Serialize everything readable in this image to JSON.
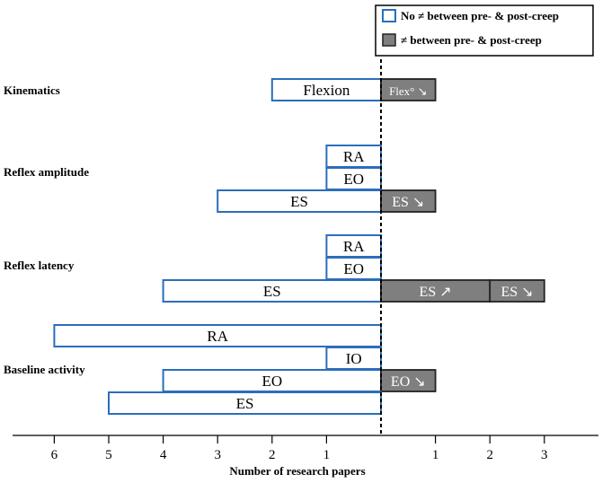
{
  "chart_data": {
    "type": "bar",
    "orientation": "horizontal-diverging",
    "xlabel": "Number of research papers",
    "left_ticks": [
      6,
      5,
      4,
      3,
      2,
      1
    ],
    "right_ticks": [
      1,
      2,
      3
    ],
    "legend": [
      {
        "label": "No ≠ between pre- & post-creep",
        "style": "outline",
        "color": "#2a6ebb"
      },
      {
        "label": "≠ between pre- & post-creep",
        "style": "filled",
        "color": "#7f7f7f"
      }
    ],
    "categories": [
      {
        "name": "Kinematics",
        "rows": [
          {
            "label": "Flexion",
            "no_diff": 2,
            "diff": [
              {
                "label": "Flex° ↘",
                "value": 1
              }
            ]
          }
        ]
      },
      {
        "name": "Reflex amplitude",
        "rows": [
          {
            "label": "RA",
            "no_diff": 1,
            "diff": []
          },
          {
            "label": "EO",
            "no_diff": 1,
            "diff": []
          },
          {
            "label": "ES",
            "no_diff": 3,
            "diff": [
              {
                "label": "ES ↘",
                "value": 1
              }
            ]
          }
        ]
      },
      {
        "name": "Reflex latency",
        "rows": [
          {
            "label": "RA",
            "no_diff": 1,
            "diff": []
          },
          {
            "label": "EO",
            "no_diff": 1,
            "diff": []
          },
          {
            "label": "ES",
            "no_diff": 4,
            "diff": [
              {
                "label": "ES ↗",
                "value": 2
              },
              {
                "label": "ES ↘",
                "value": 1
              }
            ]
          }
        ]
      },
      {
        "name": "Baseline activity",
        "rows": [
          {
            "label": "RA",
            "no_diff": 6,
            "diff": []
          },
          {
            "label": "IO",
            "no_diff": 1,
            "diff": []
          },
          {
            "label": "EO",
            "no_diff": 4,
            "diff": [
              {
                "label": "EO ↘",
                "value": 1
              }
            ]
          },
          {
            "label": "ES",
            "no_diff": 5,
            "diff": []
          }
        ]
      }
    ],
    "colors": {
      "outline": "#2a6ebb",
      "filled": "#7f7f7f",
      "filled_border": "#222222"
    }
  }
}
